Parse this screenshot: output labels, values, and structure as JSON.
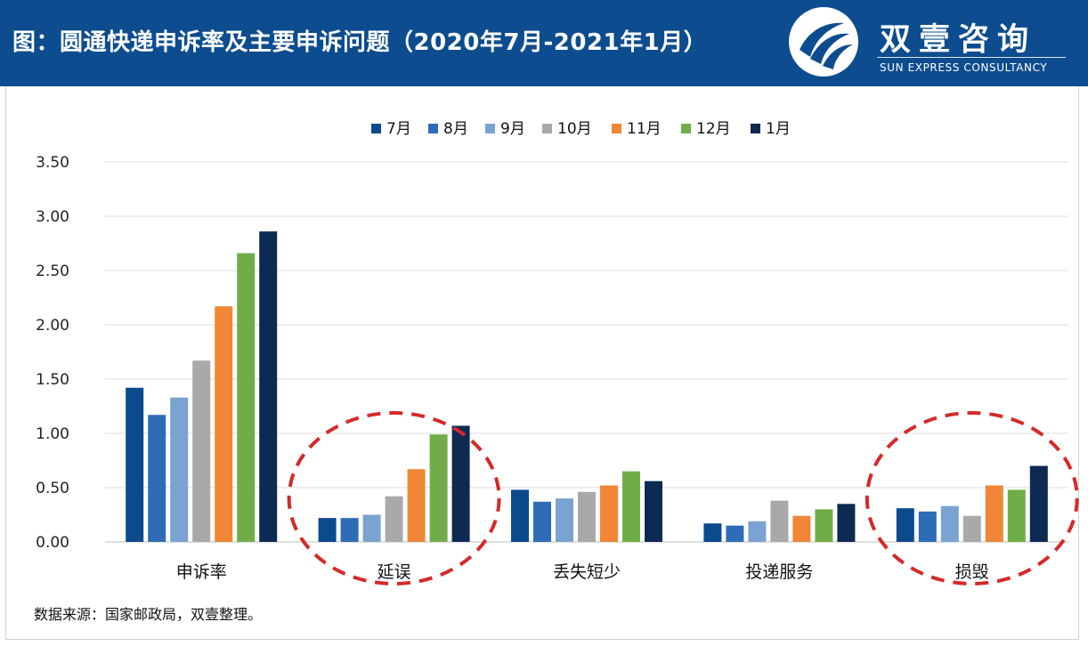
{
  "header": {
    "title": "图：圆通快递申诉率及主要申诉问题（2020年7月-2021年1月）",
    "brand_cn": "双壹咨询",
    "brand_en": "SUN EXPRESS CONSULTANCY",
    "logo_icon": "sun-express-logo-icon"
  },
  "colors": {
    "header_bg": "#0d4c8e",
    "circle": "#d42a2a"
  },
  "chart_data": {
    "type": "bar",
    "categories": [
      "申诉率",
      "延误",
      "丢失短少",
      "投递服务",
      "损毁"
    ],
    "series": [
      {
        "name": "7月",
        "color": "#0c4a8e",
        "values": [
          1.42,
          0.22,
          0.48,
          0.17,
          0.31
        ]
      },
      {
        "name": "8月",
        "color": "#2e6cb5",
        "values": [
          1.17,
          0.22,
          0.37,
          0.15,
          0.28
        ]
      },
      {
        "name": "9月",
        "color": "#7aa3d1",
        "values": [
          1.33,
          0.25,
          0.4,
          0.19,
          0.33
        ]
      },
      {
        "name": "10月",
        "color": "#a9a9a9",
        "values": [
          1.67,
          0.42,
          0.46,
          0.38,
          0.24
        ]
      },
      {
        "name": "11月",
        "color": "#f08636",
        "values": [
          2.17,
          0.67,
          0.52,
          0.24,
          0.52
        ]
      },
      {
        "name": "12月",
        "color": "#70ad47",
        "values": [
          2.66,
          0.99,
          0.65,
          0.3,
          0.48
        ]
      },
      {
        "name": "1月",
        "color": "#0d2a52",
        "values": [
          2.86,
          1.07,
          0.56,
          0.35,
          0.7
        ]
      }
    ],
    "yticks": [
      "0.00",
      "0.50",
      "1.00",
      "1.50",
      "2.00",
      "2.50",
      "3.00",
      "3.50"
    ],
    "ylim": [
      0,
      3.5
    ],
    "legend_position": "top-center",
    "grid": true,
    "highlighted_categories": [
      "延误",
      "损毁"
    ]
  },
  "source_note": "数据来源：国家邮政局，双壹整理。"
}
